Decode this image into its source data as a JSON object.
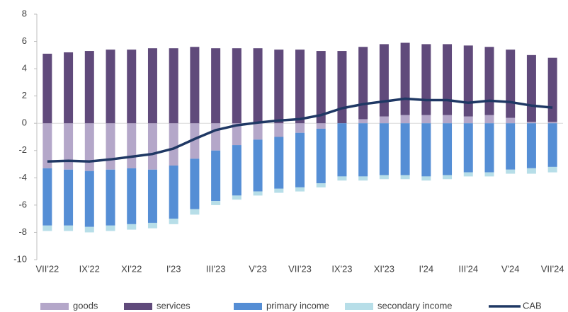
{
  "chart_data": {
    "type": "bar",
    "categories": [
      "VII'22",
      null,
      "IX'22",
      null,
      "XI'22",
      null,
      "I'23",
      null,
      "III'23",
      null,
      "V'23",
      null,
      "VII'23",
      null,
      "IX'23",
      null,
      "XI'23",
      null,
      "I'24",
      null,
      "III'24",
      null,
      "V'24",
      null,
      "VII'24"
    ],
    "series": [
      {
        "name": "goods",
        "color": "#b4a7c9",
        "type": "bar",
        "values": [
          -3.3,
          -3.4,
          -3.5,
          -3.4,
          -3.3,
          -3.4,
          -3.1,
          -2.6,
          -2.0,
          -1.6,
          -1.2,
          -1.0,
          -0.7,
          -0.4,
          0.0,
          0.3,
          0.5,
          0.6,
          0.6,
          0.6,
          0.5,
          0.6,
          0.4,
          0.1,
          0.1
        ]
      },
      {
        "name": "services",
        "color": "#604a7b",
        "type": "bar",
        "values": [
          5.1,
          5.2,
          5.3,
          5.4,
          5.4,
          5.5,
          5.5,
          5.6,
          5.5,
          5.5,
          5.5,
          5.4,
          5.4,
          5.3,
          5.3,
          5.3,
          5.3,
          5.3,
          5.2,
          5.2,
          5.2,
          5.0,
          5.0,
          4.9,
          4.7
        ]
      },
      {
        "name": "primary income",
        "color": "#558ed5",
        "type": "bar",
        "values": [
          -4.2,
          -4.1,
          -4.1,
          -4.1,
          -4.1,
          -3.9,
          -3.9,
          -3.7,
          -3.7,
          -3.7,
          -3.8,
          -3.8,
          -4.0,
          -4.0,
          -3.9,
          -3.9,
          -3.8,
          -3.8,
          -3.9,
          -3.8,
          -3.6,
          -3.6,
          -3.4,
          -3.3,
          -3.2
        ]
      },
      {
        "name": "secondary income",
        "color": "#b7dee8",
        "type": "bar",
        "values": [
          -0.4,
          -0.4,
          -0.4,
          -0.4,
          -0.4,
          -0.4,
          -0.4,
          -0.4,
          -0.3,
          -0.3,
          -0.3,
          -0.3,
          -0.3,
          -0.3,
          -0.3,
          -0.3,
          -0.3,
          -0.3,
          -0.3,
          -0.3,
          -0.3,
          -0.3,
          -0.3,
          -0.4,
          -0.4
        ]
      },
      {
        "name": "CAB",
        "color": "#1f3864",
        "type": "line",
        "values": [
          -2.8,
          -2.75,
          -2.8,
          -2.65,
          -2.45,
          -2.25,
          -1.85,
          -1.15,
          -0.5,
          -0.15,
          0.05,
          0.2,
          0.3,
          0.6,
          1.1,
          1.4,
          1.6,
          1.8,
          1.7,
          1.7,
          1.5,
          1.65,
          1.55,
          1.3,
          1.15
        ]
      }
    ],
    "ylim": [
      -10,
      8
    ],
    "yticks": [
      -10,
      -8,
      -6,
      -4,
      -2,
      0,
      2,
      4,
      6,
      8
    ],
    "grid": false,
    "legend": "bottom"
  }
}
